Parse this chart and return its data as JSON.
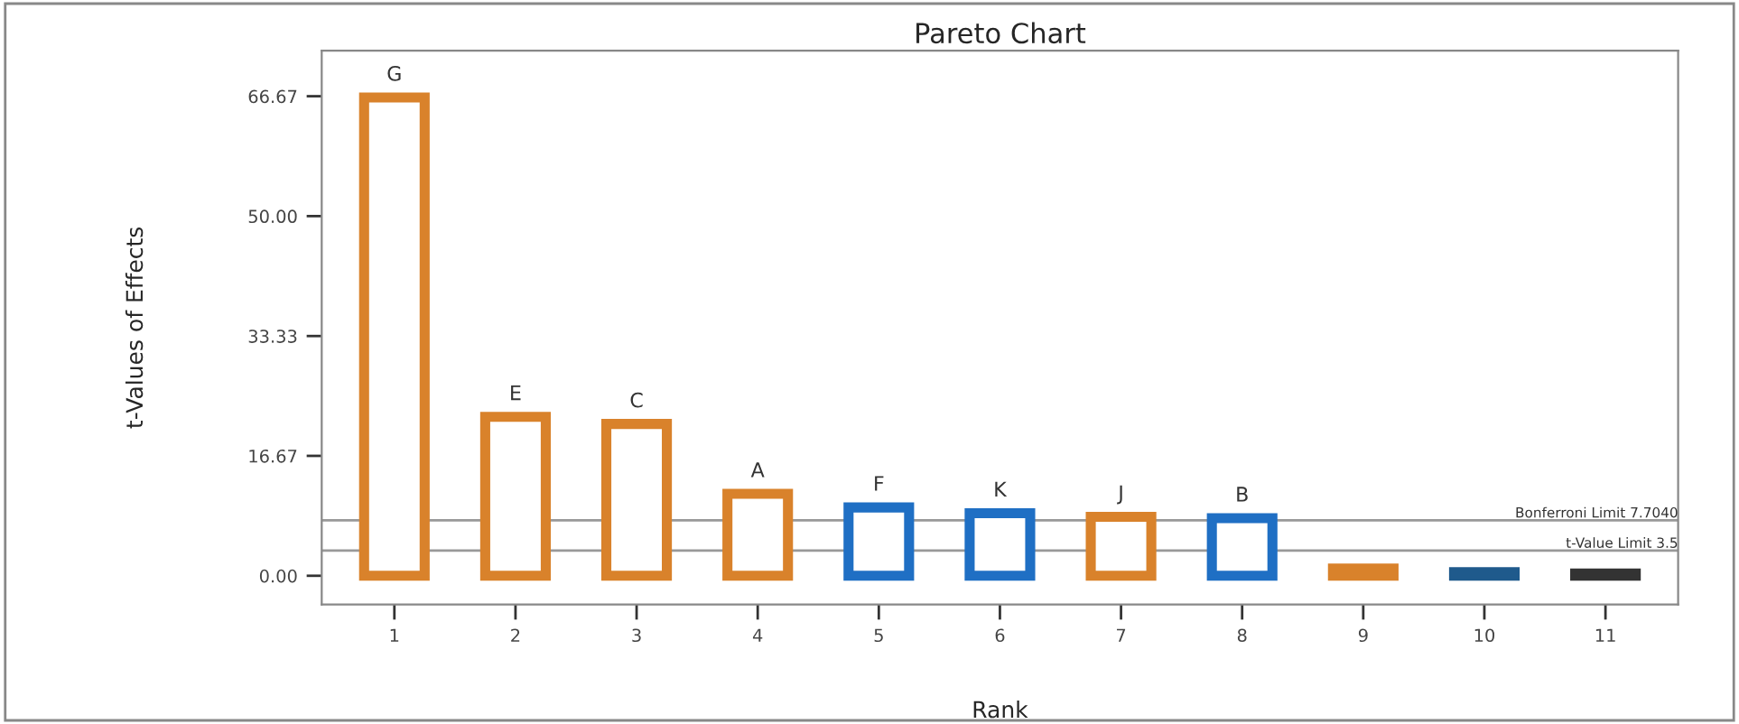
{
  "chart_data": {
    "type": "bar",
    "title": "Pareto Chart",
    "xlabel": "Rank",
    "ylabel": "t-Values of Effects",
    "categories": [
      "1",
      "2",
      "3",
      "4",
      "5",
      "6",
      "7",
      "8",
      "9",
      "10",
      "11"
    ],
    "values": [
      66.5,
      22.1,
      21.1,
      11.4,
      9.5,
      8.7,
      8.2,
      8.0,
      1.0,
      0.5,
      0.3
    ],
    "colors": [
      "#d9822b",
      "#d9822b",
      "#d9822b",
      "#d9822b",
      "#1f6fc4",
      "#1f6fc4",
      "#d9822b",
      "#1f6fc4",
      "#d9822b",
      "#1f5a8c",
      "#333333"
    ],
    "value_labels": [
      "G",
      "E",
      "C",
      "A",
      "F",
      "K",
      "J",
      "B",
      null,
      null,
      null
    ],
    "ylim": [
      -4,
      73
    ],
    "yticks": [
      {
        "value": 0,
        "label": "0.00"
      },
      {
        "value": 16.67,
        "label": "16.67"
      },
      {
        "value": 33.33,
        "label": "33.33"
      },
      {
        "value": 50,
        "label": "50.00"
      },
      {
        "value": 66.67,
        "label": "66.67"
      }
    ],
    "ref_lines": [
      {
        "axis": "y",
        "value": 7.704,
        "label": "Bonferroni Limit 7.7040",
        "color": "#999999"
      },
      {
        "axis": "y",
        "value": 3.5,
        "label": "t-Value Limit 3.5",
        "color": "#999999"
      }
    ],
    "grid": false
  }
}
